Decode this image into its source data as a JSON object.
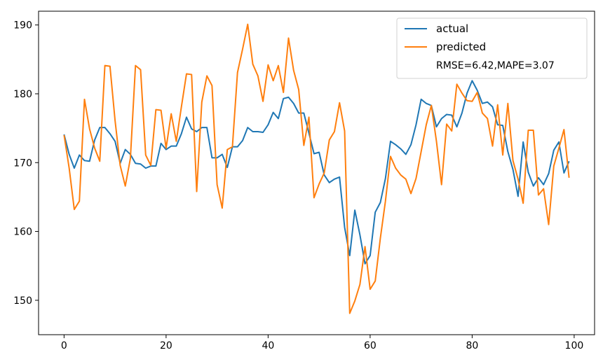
{
  "chart_data": {
    "type": "line",
    "title": "",
    "xlabel": "",
    "ylabel": "",
    "xlim": [
      -5,
      104
    ],
    "ylim": [
      145,
      192
    ],
    "xticks": [
      0,
      20,
      40,
      60,
      80,
      100
    ],
    "yticks": [
      150,
      160,
      170,
      180,
      190
    ],
    "grid": false,
    "legend": {
      "placement": "top-right",
      "note": "RMSE=6.42,MAPE=3.07"
    },
    "x": [
      0,
      1,
      2,
      3,
      4,
      5,
      6,
      7,
      8,
      9,
      10,
      11,
      12,
      13,
      14,
      15,
      16,
      17,
      18,
      19,
      20,
      21,
      22,
      23,
      24,
      25,
      26,
      27,
      28,
      29,
      30,
      31,
      32,
      33,
      34,
      35,
      36,
      37,
      38,
      39,
      40,
      41,
      42,
      43,
      44,
      45,
      46,
      47,
      48,
      49,
      50,
      51,
      52,
      53,
      54,
      55,
      56,
      57,
      58,
      59,
      60,
      61,
      62,
      63,
      64,
      65,
      66,
      67,
      68,
      69,
      70,
      71,
      72,
      73,
      74,
      75,
      76,
      77,
      78,
      79,
      80,
      81,
      82,
      83,
      84,
      85,
      86,
      87,
      88,
      89,
      90,
      91,
      92,
      93,
      94,
      95,
      96,
      97,
      98,
      99
    ],
    "series": [
      {
        "name": "actual",
        "color": "#1f77b4",
        "values": [
          174.1,
          171.2,
          169.2,
          171.1,
          170.3,
          170.2,
          173.3,
          175.1,
          175.1,
          174.2,
          173.1,
          169.9,
          171.9,
          171.2,
          169.9,
          169.8,
          169.2,
          169.5,
          169.5,
          172.8,
          171.9,
          172.4,
          172.4,
          174.2,
          176.6,
          174.9,
          174.5,
          175.1,
          175.1,
          170.7,
          170.7,
          171.2,
          169.3,
          172.3,
          172.3,
          173.2,
          175.1,
          174.5,
          174.5,
          174.4,
          175.5,
          177.3,
          176.4,
          179.3,
          179.5,
          178.6,
          177.2,
          177.2,
          174.3,
          171.3,
          171.5,
          168.2,
          167.1,
          167.6,
          167.9,
          160.6,
          156.5,
          163.1,
          159.5,
          155.3,
          156.5,
          162.8,
          164.2,
          167.7,
          173.1,
          172.6,
          172.0,
          171.2,
          172.6,
          175.5,
          179.2,
          178.6,
          178.3,
          175.2,
          176.4,
          177.0,
          176.9,
          175.2,
          177.2,
          180.1,
          181.9,
          180.5,
          178.6,
          178.8,
          178.1,
          175.5,
          175.4,
          171.6,
          169.0,
          165.1,
          173.0,
          168.6,
          166.6,
          167.8,
          166.8,
          168.4,
          171.8,
          173.0,
          168.5,
          170.2
        ]
      },
      {
        "name": "predicted",
        "color": "#ff7f0e",
        "values": [
          174.0,
          169.2,
          163.2,
          164.4,
          179.2,
          174.9,
          172.1,
          170.2,
          184.1,
          184.0,
          176.1,
          169.6,
          166.6,
          170.6,
          184.1,
          183.5,
          171.1,
          169.6,
          177.7,
          177.6,
          172.1,
          177.1,
          173.1,
          178.1,
          182.9,
          182.8,
          165.8,
          178.8,
          182.6,
          181.2,
          166.8,
          163.4,
          171.9,
          172.3,
          183.1,
          186.5,
          190.1,
          184.3,
          182.6,
          178.9,
          184.2,
          181.9,
          184.1,
          180.2,
          188.1,
          183.4,
          180.6,
          172.5,
          176.6,
          164.9,
          166.9,
          168.5,
          173.3,
          174.5,
          178.7,
          174.6,
          148.1,
          149.9,
          152.3,
          157.8,
          151.6,
          152.8,
          159.0,
          164.4,
          170.9,
          169.2,
          168.2,
          167.6,
          165.5,
          167.7,
          171.6,
          175.5,
          178.3,
          173.1,
          166.8,
          175.6,
          174.6,
          181.4,
          180.1,
          179.0,
          178.9,
          180.2,
          177.2,
          176.4,
          172.4,
          178.4,
          171.1,
          178.6,
          170.3,
          167.6,
          164.1,
          174.7,
          174.7,
          165.3,
          166.2,
          161.0,
          169.5,
          172.1,
          174.8,
          167.8
        ]
      }
    ]
  }
}
